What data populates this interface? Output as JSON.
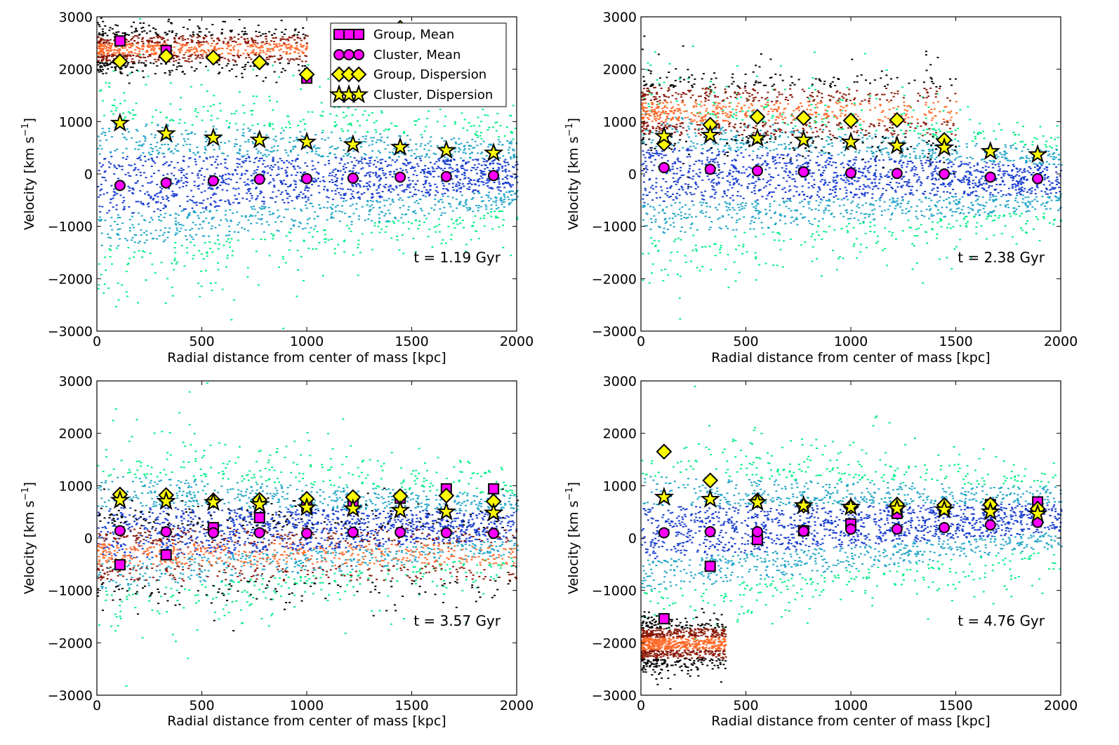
{
  "figure": {
    "legend_entries": [
      "Group, Mean",
      "Cluster, Mean",
      "Group, Dispersion",
      "Cluster, Dispersion"
    ],
    "colors": {
      "mean_marker": "#ff00ff",
      "dispersion_marker": "#ffff00",
      "marker_edge": "#000000",
      "cluster_density_low": "#00ee88",
      "cluster_density_mid": "#22a6c8",
      "cluster_density_high": "#1a3fd0",
      "group_density_low": "#000000",
      "group_density_mid": "#8a1a0a",
      "group_density_high": "#ff6a2a"
    }
  },
  "chart_data": [
    {
      "type": "scatter",
      "annotation": "t = 1.19 Gyr",
      "xlabel": "Radial distance from center of mass [kpc]",
      "ylabel_main": "Velocity [km s",
      "ylabel_sup": "−1",
      "ylabel_close": "]",
      "xlim": [
        0,
        2000
      ],
      "ylim": [
        -3000,
        3000
      ],
      "xticks": [
        0,
        500,
        1000,
        1500,
        2000
      ],
      "yticks": [
        -3000,
        -2000,
        -1000,
        0,
        1000,
        2000,
        3000
      ],
      "xtick_labels": [
        "0",
        "500",
        "1000",
        "1500",
        "2000"
      ],
      "ytick_labels": [
        "−3000",
        "−2000",
        "−1000",
        "0",
        "1000",
        "2000",
        "3000"
      ],
      "legend": true,
      "legend_position": "top-right",
      "x": [
        110,
        330,
        555,
        775,
        1000,
        1220,
        1445,
        1665,
        1890
      ],
      "series": [
        {
          "name": "Group, Mean",
          "marker": "square",
          "values": [
            2540,
            2360,
            null,
            null,
            1830,
            null,
            null,
            null,
            null
          ]
        },
        {
          "name": "Cluster, Mean",
          "marker": "circle",
          "values": [
            -220,
            -170,
            -130,
            -100,
            -90,
            -80,
            -60,
            -50,
            -30
          ]
        },
        {
          "name": "Group, Dispersion",
          "marker": "diamond",
          "values": [
            2150,
            2250,
            2220,
            2130,
            1900,
            null,
            2790,
            null,
            null
          ]
        },
        {
          "name": "Cluster, Dispersion",
          "marker": "star",
          "values": [
            970,
            770,
            690,
            650,
            610,
            560,
            510,
            450,
            400
          ]
        }
      ],
      "density": {
        "cluster": {
          "spread_at_x0": 1900,
          "spread_at_x2000": 1000,
          "center_at_x0": -200,
          "center_at_x2000": 0
        },
        "group": {
          "center": 2400,
          "spread": 350,
          "x_max": 1000
        }
      }
    },
    {
      "type": "scatter",
      "annotation": "t = 2.38 Gyr",
      "xlabel": "Radial distance from center of mass [kpc]",
      "ylabel_main": "Velocity [km s",
      "ylabel_sup": "−1",
      "ylabel_close": "]",
      "xlim": [
        0,
        2000
      ],
      "ylim": [
        -3000,
        3000
      ],
      "xticks": [
        0,
        500,
        1000,
        1500,
        2000
      ],
      "yticks": [
        -3000,
        -2000,
        -1000,
        0,
        1000,
        2000,
        3000
      ],
      "xtick_labels": [
        "0",
        "500",
        "1000",
        "1500",
        "2000"
      ],
      "ytick_labels": [
        "−3000",
        "−2000",
        "−1000",
        "0",
        "1000",
        "2000",
        "3000"
      ],
      "legend": false,
      "x": [
        110,
        330,
        555,
        775,
        1000,
        1220,
        1445,
        1665,
        1890
      ],
      "series": [
        {
          "name": "Group, Mean",
          "marker": "square",
          "values": [
            null,
            null,
            null,
            null,
            null,
            null,
            null,
            null,
            null
          ]
        },
        {
          "name": "Cluster, Mean",
          "marker": "circle",
          "values": [
            120,
            90,
            60,
            40,
            20,
            10,
            0,
            -60,
            -90
          ]
        },
        {
          "name": "Group, Dispersion",
          "marker": "diamond",
          "values": [
            580,
            940,
            1090,
            1070,
            1020,
            1030,
            650,
            null,
            null
          ]
        },
        {
          "name": "Cluster, Dispersion",
          "marker": "star",
          "values": [
            720,
            740,
            680,
            650,
            610,
            540,
            500,
            430,
            370
          ]
        }
      ],
      "density": {
        "cluster": {
          "spread_at_x0": 1800,
          "spread_at_x2000": 900,
          "center_at_x0": 0,
          "center_at_x2000": -100
        },
        "group": {
          "center": 1200,
          "spread": 650,
          "x_max": 1500
        }
      }
    },
    {
      "type": "scatter",
      "annotation": "t = 3.57 Gyr",
      "xlabel": "Radial distance from center of mass [kpc]",
      "ylabel_main": "Velocity [km s",
      "ylabel_sup": "−1",
      "ylabel_close": "]",
      "xlim": [
        0,
        2000
      ],
      "ylim": [
        -3000,
        3000
      ],
      "xticks": [
        0,
        500,
        1000,
        1500,
        2000
      ],
      "yticks": [
        -3000,
        -2000,
        -1000,
        0,
        1000,
        2000,
        3000
      ],
      "xtick_labels": [
        "0",
        "500",
        "1000",
        "1500",
        "2000"
      ],
      "ytick_labels": [
        "−3000",
        "−2000",
        "−1000",
        "0",
        "1000",
        "2000",
        "3000"
      ],
      "legend": false,
      "x": [
        110,
        330,
        555,
        775,
        1000,
        1220,
        1445,
        1665,
        1890
      ],
      "series": [
        {
          "name": "Group, Mean",
          "marker": "square",
          "values": [
            -510,
            -320,
            200,
            390,
            600,
            700,
            760,
            940,
            940
          ]
        },
        {
          "name": "Cluster, Mean",
          "marker": "circle",
          "values": [
            140,
            120,
            100,
            100,
            90,
            110,
            110,
            100,
            90
          ]
        },
        {
          "name": "Group, Dispersion",
          "marker": "diamond",
          "values": [
            830,
            820,
            720,
            730,
            750,
            780,
            800,
            810,
            700
          ]
        },
        {
          "name": "Cluster, Dispersion",
          "marker": "star",
          "values": [
            720,
            700,
            680,
            640,
            580,
            560,
            530,
            500,
            480
          ]
        }
      ],
      "density": {
        "cluster": {
          "spread_at_x0": 1700,
          "spread_at_x2000": 900,
          "center_at_x0": 100,
          "center_at_x2000": 250
        },
        "group": {
          "center": -300,
          "spread": 700,
          "x_max": 2000
        }
      }
    },
    {
      "type": "scatter",
      "annotation": "t = 4.76 Gyr",
      "xlabel": "Radial distance from center of mass [kpc]",
      "ylabel_main": "Velocity [km s",
      "ylabel_sup": "−1",
      "ylabel_close": "]",
      "xlim": [
        0,
        2000
      ],
      "ylim": [
        -3000,
        3000
      ],
      "xticks": [
        0,
        500,
        1000,
        1500,
        2000
      ],
      "yticks": [
        -3000,
        -2000,
        -1000,
        0,
        1000,
        2000,
        3000
      ],
      "xtick_labels": [
        "0",
        "500",
        "1000",
        "1500",
        "2000"
      ],
      "ytick_labels": [
        "−3000",
        "−2000",
        "−1000",
        "0",
        "1000",
        "2000",
        "3000"
      ],
      "legend": false,
      "x": [
        110,
        330,
        555,
        775,
        1000,
        1220,
        1445,
        1665,
        1890
      ],
      "series": [
        {
          "name": "Group, Mean",
          "marker": "square",
          "values": [
            -1540,
            -540,
            -30,
            140,
            270,
            470,
            560,
            640,
            690
          ]
        },
        {
          "name": "Cluster, Mean",
          "marker": "circle",
          "values": [
            100,
            120,
            120,
            130,
            170,
            170,
            200,
            250,
            300
          ]
        },
        {
          "name": "Group, Dispersion",
          "marker": "diamond",
          "values": [
            1650,
            1100,
            720,
            620,
            600,
            640,
            630,
            640,
            560
          ]
        },
        {
          "name": "Cluster, Dispersion",
          "marker": "star",
          "values": [
            780,
            740,
            680,
            620,
            590,
            560,
            540,
            500,
            460
          ]
        }
      ],
      "density": {
        "cluster": {
          "spread_at_x0": 1700,
          "spread_at_x2000": 900,
          "center_at_x0": 100,
          "center_at_x2000": 400
        },
        "group": {
          "center": -2000,
          "spread": 400,
          "x_max": 400
        }
      }
    }
  ]
}
